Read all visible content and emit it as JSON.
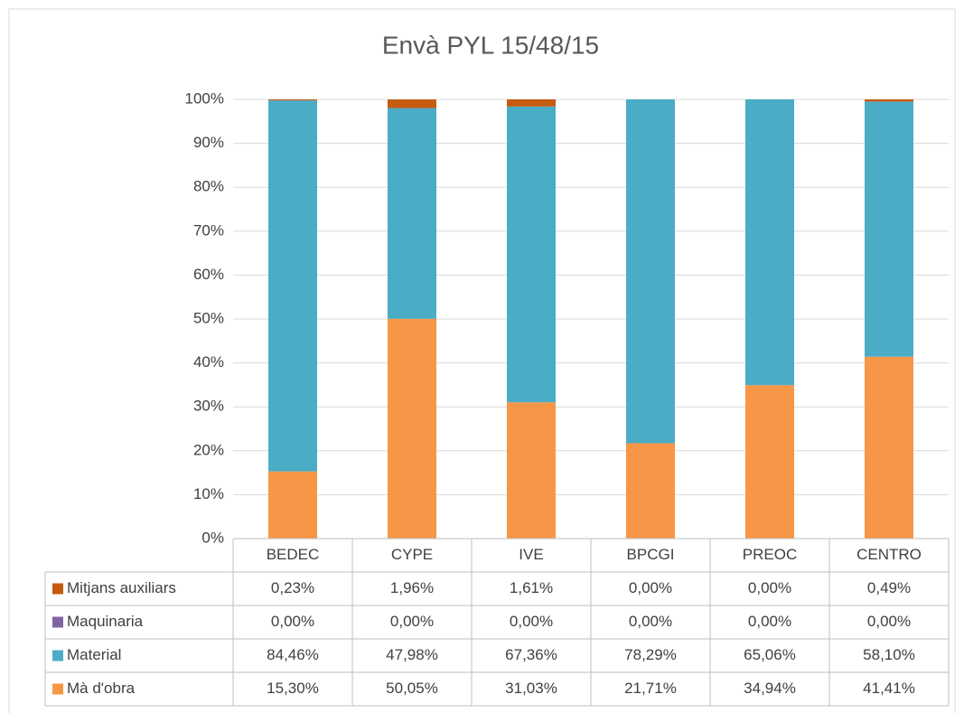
{
  "chart_data": {
    "type": "stacked_bar_100",
    "title": "Envà PYL 15/48/15",
    "categories": [
      "BEDEC",
      "CYPE",
      "IVE",
      "BPCGI",
      "PREOC",
      "CENTRO"
    ],
    "series": [
      {
        "name": "Mitjans auxiliars",
        "color": "#c55a11",
        "values": [
          0.23,
          1.96,
          1.61,
          0,
          0,
          0.49
        ],
        "value_labels": [
          "0,23%",
          "1,96%",
          "1,61%",
          "0,00%",
          "0,00%",
          "0,49%"
        ]
      },
      {
        "name": "Maquinaria",
        "color": "#8064a2",
        "values": [
          0,
          0,
          0,
          0,
          0,
          0
        ],
        "value_labels": [
          "0,00%",
          "0,00%",
          "0,00%",
          "0,00%",
          "0,00%",
          "0,00%"
        ]
      },
      {
        "name": "Material",
        "color": "#4bacc6",
        "values": [
          84.46,
          47.98,
          67.36,
          78.29,
          65.06,
          58.1
        ],
        "value_labels": [
          "84,46%",
          "47,98%",
          "67,36%",
          "78,29%",
          "65,06%",
          "58,10%"
        ]
      },
      {
        "name": "Mà d'obra",
        "color": "#f79646",
        "values": [
          15.3,
          50.05,
          31.03,
          21.71,
          34.94,
          41.41
        ],
        "value_labels": [
          "15,30%",
          "50,05%",
          "31,03%",
          "21,71%",
          "34,94%",
          "41,41%"
        ]
      }
    ],
    "ylim": [
      0,
      100
    ],
    "yticks": [
      {
        "value": 0,
        "label": "0%"
      },
      {
        "value": 10,
        "label": "10%"
      },
      {
        "value": 20,
        "label": "20%"
      },
      {
        "value": 30,
        "label": "30%"
      },
      {
        "value": 40,
        "label": "40%"
      },
      {
        "value": 50,
        "label": "50%"
      },
      {
        "value": 60,
        "label": "60%"
      },
      {
        "value": 70,
        "label": "70%"
      },
      {
        "value": 80,
        "label": "80%"
      },
      {
        "value": 90,
        "label": "90%"
      },
      {
        "value": 100,
        "label": "100%"
      }
    ],
    "grid": true
  }
}
